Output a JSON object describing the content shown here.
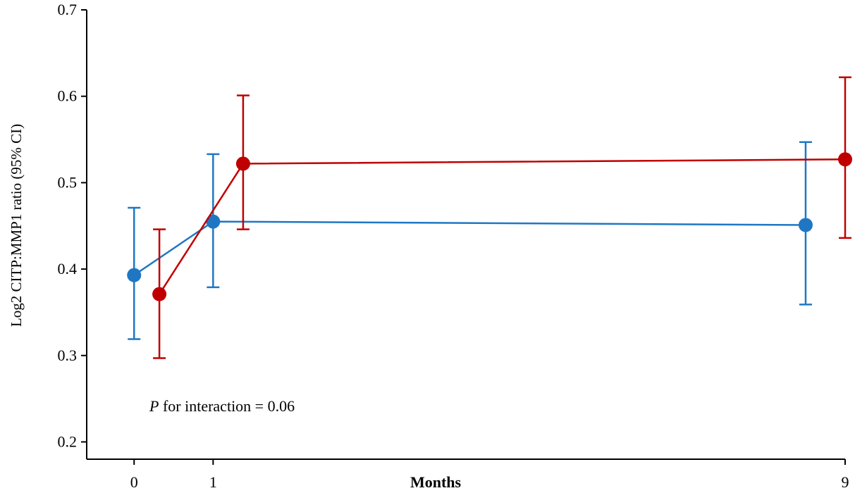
{
  "chart_data": {
    "type": "line",
    "xlabel": "Months",
    "ylabel": "Log2 CITP:MMP1 ratio (95% CI)",
    "xlim": [
      -0.6,
      9
    ],
    "ylim": [
      0.18,
      0.7
    ],
    "x_ticks": [
      0,
      1,
      9
    ],
    "x_tick_labels": [
      "0",
      "1",
      "9"
    ],
    "y_ticks": [
      0.2,
      0.3,
      0.4,
      0.5,
      0.6,
      0.7
    ],
    "y_tick_labels": [
      "0.2",
      "0.3",
      "0.4",
      "0.5",
      "0.6",
      "0.7"
    ],
    "grid": false,
    "annotation": {
      "italic": "P",
      "text": " for interaction = 0.06"
    },
    "series": [
      {
        "color": "#1f77c4",
        "points": [
          {
            "x": 0.0,
            "y": 0.393,
            "lo": 0.319,
            "hi": 0.471
          },
          {
            "x": 1.0,
            "y": 0.455,
            "lo": 0.379,
            "hi": 0.533
          },
          {
            "x": 8.5,
            "y": 0.451,
            "lo": 0.359,
            "hi": 0.547
          }
        ]
      },
      {
        "color": "#c00000",
        "points": [
          {
            "x": 0.32,
            "y": 0.371,
            "lo": 0.297,
            "hi": 0.446
          },
          {
            "x": 1.38,
            "y": 0.522,
            "lo": 0.446,
            "hi": 0.601
          },
          {
            "x": 9.0,
            "y": 0.527,
            "lo": 0.436,
            "hi": 0.622
          }
        ]
      }
    ]
  }
}
